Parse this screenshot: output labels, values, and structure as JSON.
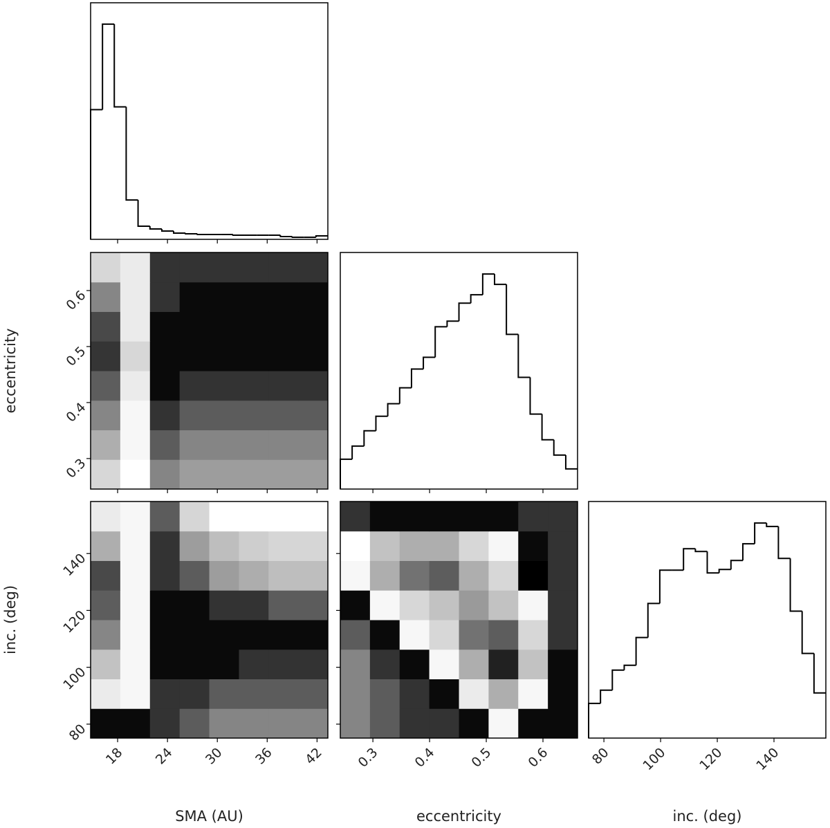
{
  "chart_data": [
    {
      "type": "histogram",
      "bins": [
        14.75,
        16.18,
        17.6,
        19.03,
        20.46,
        21.89,
        23.32,
        24.74,
        26.17,
        27.6,
        29.03,
        30.45,
        31.88,
        33.31,
        34.74,
        36.16,
        37.59,
        39.02,
        40.45,
        41.87,
        43.3
      ],
      "values": [
        188,
        312,
        192,
        57,
        19,
        15,
        12,
        9,
        8,
        7,
        7,
        7,
        6,
        6,
        6,
        6,
        4,
        3,
        3,
        5
      ],
      "xlim": [
        14.75,
        43.3
      ],
      "ylim": [
        0,
        343
      ],
      "xticks": [
        18,
        24,
        30,
        36,
        42
      ],
      "color": "#000000"
    },
    {
      "type": "heatmap",
      "xbins": [
        14.75,
        18.32,
        21.89,
        25.46,
        29.03,
        32.6,
        36.16,
        39.73,
        43.3
      ],
      "ybins": [
        0.2455,
        0.2983,
        0.3511,
        0.4039,
        0.4567,
        0.5096,
        0.5624,
        0.6152,
        0.668
      ],
      "z": [
        [
          0.5,
          0.4,
          0.15,
          0.12,
          0.12,
          0.12,
          0.12,
          0.12
        ],
        [
          0.6,
          0.42,
          0.2,
          0.15,
          0.15,
          0.15,
          0.15,
          0.15
        ],
        [
          0.7,
          0.42,
          0.25,
          0.2,
          0.2,
          0.2,
          0.2,
          0.2
        ],
        [
          0.8,
          0.45,
          0.3,
          0.25,
          0.25,
          0.25,
          0.25,
          0.25
        ],
        [
          0.9,
          0.5,
          0.3,
          0.3,
          0.3,
          0.3,
          0.3,
          0.3
        ],
        [
          0.85,
          0.45,
          0.3,
          0.3,
          0.3,
          0.3,
          0.3,
          0.3
        ],
        [
          0.7,
          0.45,
          0.25,
          0.3,
          0.3,
          0.3,
          0.3,
          0.3
        ],
        [
          0.5,
          0.45,
          0.25,
          0.25,
          0.25,
          0.25,
          0.25,
          0.25
        ]
      ],
      "xlim": [
        14.75,
        43.3
      ],
      "ylim": [
        0.2455,
        0.668
      ],
      "xticks": [
        18,
        24,
        30,
        36,
        42
      ],
      "yticks": [
        0.3,
        0.4,
        0.5,
        0.6
      ],
      "ylabel": "eccentricity"
    },
    {
      "type": "histogram",
      "bins": [
        0.2425,
        0.2634,
        0.2844,
        0.3053,
        0.3262,
        0.3472,
        0.3681,
        0.389,
        0.4099,
        0.4309,
        0.4518,
        0.4727,
        0.4937,
        0.5146,
        0.5355,
        0.5565,
        0.5774,
        0.5983,
        0.6192,
        0.6402,
        0.661
      ],
      "values": [
        43,
        62,
        84,
        105,
        123,
        146,
        173,
        190,
        234,
        242,
        268,
        280,
        310,
        295,
        223,
        161,
        108,
        71,
        49,
        29
      ],
      "xlim": [
        0.2425,
        0.661
      ],
      "ylim": [
        0,
        341
      ],
      "xticks": [
        0.3,
        0.4,
        0.5,
        0.6
      ],
      "color": "#000000"
    },
    {
      "type": "heatmap",
      "xbins": [
        14.75,
        18.32,
        21.89,
        25.46,
        29.03,
        32.6,
        36.16,
        39.73,
        43.3
      ],
      "ybins": [
        75.1,
        85.5,
        95.9,
        106.3,
        116.7,
        127.1,
        137.5,
        147.9,
        158.3
      ],
      "z": [
        [
          0.3,
          0.3,
          0.25,
          0.2,
          0.15,
          0.15,
          0.15,
          0.15
        ],
        [
          0.45,
          0.42,
          0.25,
          0.25,
          0.2,
          0.2,
          0.2,
          0.2
        ],
        [
          0.55,
          0.42,
          0.3,
          0.3,
          0.3,
          0.25,
          0.25,
          0.25
        ],
        [
          0.7,
          0.42,
          0.3,
          0.3,
          0.3,
          0.3,
          0.3,
          0.3
        ],
        [
          0.8,
          0.42,
          0.3,
          0.3,
          0.25,
          0.25,
          0.2,
          0.2
        ],
        [
          0.85,
          0.42,
          0.25,
          0.2,
          0.12,
          0.1,
          0.08,
          0.08
        ],
        [
          0.6,
          0.42,
          0.25,
          0.12,
          0.08,
          0.06,
          0.05,
          0.05
        ],
        [
          0.45,
          0.42,
          0.2,
          0.05,
          0.03,
          0.03,
          0.02,
          0.02
        ]
      ],
      "xlim": [
        14.75,
        43.3
      ],
      "ylim": [
        75.1,
        158.3
      ],
      "xticks": [
        18,
        24,
        30,
        36,
        42
      ],
      "yticks": [
        80,
        100,
        120,
        140
      ],
      "xlabel": "SMA (AU)",
      "ylabel": "inc. (deg)"
    },
    {
      "type": "heatmap",
      "xbins": [
        0.2425,
        0.2948,
        0.3471,
        0.3994,
        0.4518,
        0.5041,
        0.5564,
        0.6087,
        0.661
      ],
      "ybins": [
        75.1,
        85.5,
        95.9,
        106.3,
        116.7,
        127.1,
        137.5,
        147.9,
        158.3
      ],
      "z": [
        [
          0.15,
          0.2,
          0.25,
          0.25,
          0.3,
          0.42,
          0.3,
          0.3
        ],
        [
          0.15,
          0.2,
          0.25,
          0.3,
          0.45,
          0.6,
          0.42,
          0.3
        ],
        [
          0.15,
          0.25,
          0.3,
          0.42,
          0.6,
          0.95,
          0.55,
          0.3
        ],
        [
          0.2,
          0.3,
          0.42,
          0.5,
          0.75,
          0.8,
          0.5,
          0.25
        ],
        [
          0.3,
          0.42,
          0.5,
          0.55,
          0.65,
          0.55,
          0.42,
          0.25
        ],
        [
          0.42,
          0.6,
          0.75,
          0.8,
          0.6,
          0.5,
          0.35,
          0.25
        ],
        [
          0.4,
          0.55,
          0.6,
          0.6,
          0.5,
          0.42,
          0.3,
          0.25
        ],
        [
          0.25,
          0.3,
          0.3,
          0.3,
          0.3,
          0.3,
          0.25,
          0.25
        ]
      ],
      "xlim": [
        0.2425,
        0.661
      ],
      "ylim": [
        75.1,
        158.3
      ],
      "xticks": [
        0.3,
        0.4,
        0.5,
        0.6
      ],
      "yticks": [
        80,
        100,
        120,
        140
      ],
      "xlabel": "eccentricity"
    },
    {
      "type": "histogram",
      "bins": [
        74.6,
        78.79,
        82.97,
        87.16,
        91.34,
        95.53,
        99.71,
        103.9,
        108.08,
        112.27,
        116.45,
        120.64,
        124.82,
        129.01,
        133.19,
        137.38,
        141.56,
        145.75,
        149.93,
        154.12,
        158.3
      ],
      "values": [
        50,
        69,
        98,
        105,
        145,
        194,
        242,
        242,
        273,
        269,
        238,
        243,
        256,
        280,
        310,
        305,
        259,
        183,
        122,
        65
      ],
      "xlim": [
        74.6,
        158.3
      ],
      "ylim": [
        0,
        341
      ],
      "xticks": [
        80,
        100,
        120,
        140
      ],
      "color": "#000000",
      "xlabel": "inc. (deg)"
    }
  ]
}
